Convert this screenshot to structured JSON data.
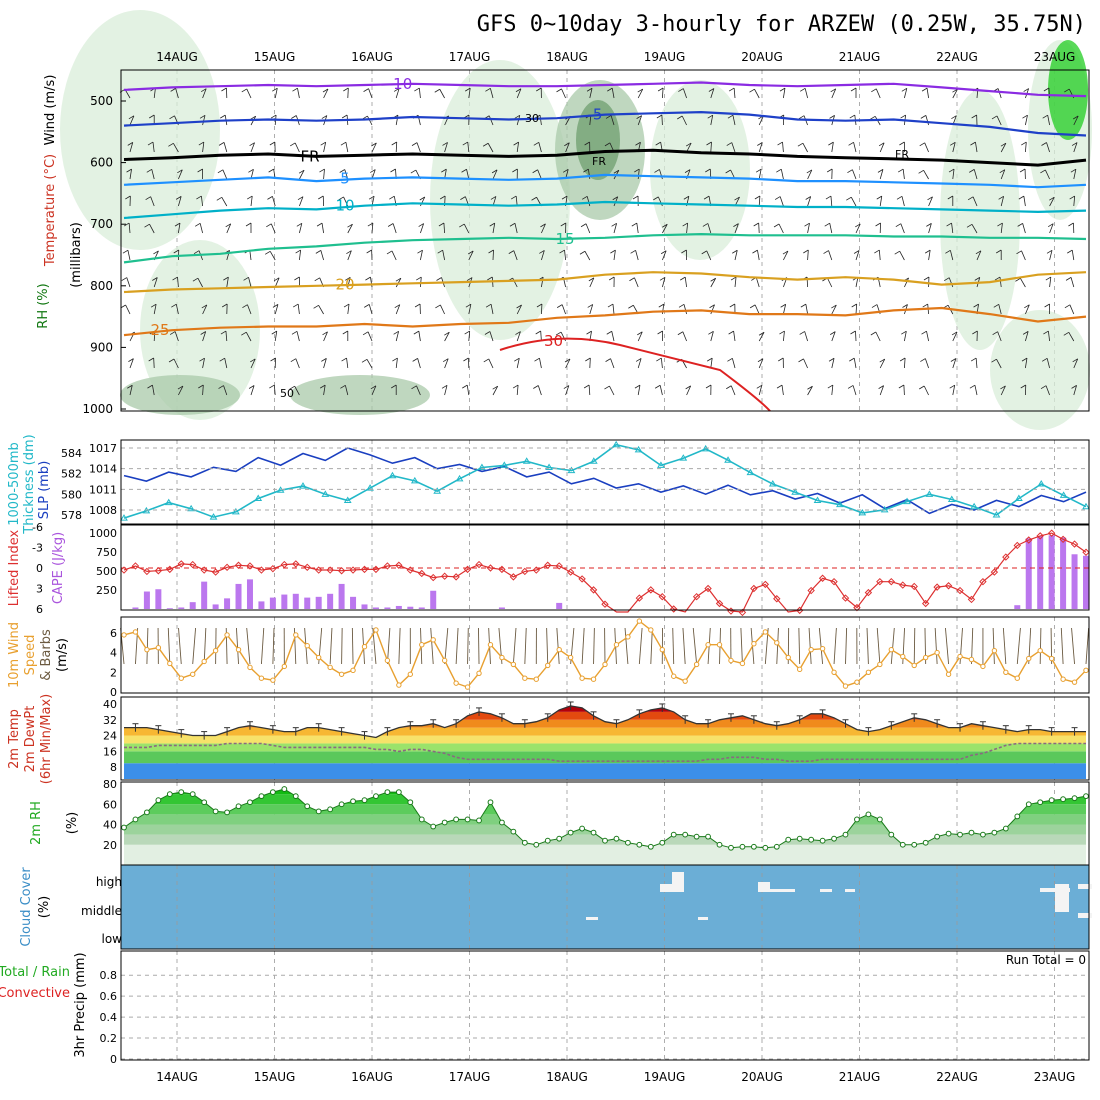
{
  "title": "GFS 0~10day 3-hourly for ARZEW (0.25W, 35.75N)",
  "dates": [
    "14AUG",
    "15AUG",
    "16AUG",
    "17AUG",
    "18AUG",
    "19AUG",
    "20AUG",
    "21AUG",
    "22AUG",
    "23AUG"
  ],
  "colors": {
    "rh_fill_light": "#d9eed9",
    "rh_fill_mid": "#a9c9a9",
    "rh_fill_dark": "#6f9f6f",
    "rh_green": "#22cc22",
    "temp_m10": "#8a2be2",
    "temp_m5": "#1e40c8",
    "temp_fr": "#000000",
    "temp_5": "#1e90ff",
    "temp_10": "#00b0c8",
    "temp_15": "#1fbf8f",
    "temp_20": "#d9a020",
    "temp_25": "#e07818",
    "temp_30": "#dd2222",
    "slp": "#1a3fc0",
    "thick": "#22b8c8",
    "li": "#dd3030",
    "cape": "#bb77ee",
    "wind": "#e8a030",
    "cloud_bg": "#6baed6"
  },
  "chart_data": [
    {
      "type": "line",
      "panel": "upper-air",
      "ylabel_parts": [
        "Wind (m/s)",
        "Temperature (°C)",
        "RH (%)"
      ],
      "yaxis_label": "(millibars)",
      "yticks": [
        500,
        600,
        700,
        800,
        900,
        1000
      ],
      "ylim": [
        450,
        1000
      ],
      "fr_label": "FR",
      "rh_labels": [
        "30",
        "50"
      ],
      "isotherms": [
        {
          "name": "-10",
          "values": [
            482,
            478,
            476,
            474,
            476,
            474,
            472,
            474,
            476,
            476,
            474,
            472,
            470,
            474,
            476,
            474,
            472,
            478,
            484,
            490,
            492
          ]
        },
        {
          "name": "-5",
          "values": [
            540,
            536,
            532,
            530,
            532,
            530,
            526,
            528,
            530,
            528,
            522,
            520,
            518,
            522,
            530,
            532,
            530,
            536,
            542,
            552,
            556
          ]
        },
        {
          "name": "FR",
          "values": [
            595,
            592,
            588,
            586,
            590,
            588,
            586,
            588,
            590,
            588,
            582,
            580,
            584,
            586,
            590,
            592,
            594,
            596,
            600,
            604,
            596
          ]
        },
        {
          "name": "5",
          "values": [
            636,
            632,
            628,
            624,
            630,
            626,
            624,
            626,
            628,
            626,
            620,
            622,
            624,
            626,
            630,
            630,
            632,
            634,
            636,
            640,
            636
          ]
        },
        {
          "name": "10",
          "values": [
            690,
            684,
            678,
            674,
            676,
            670,
            666,
            668,
            670,
            668,
            664,
            666,
            668,
            670,
            672,
            672,
            674,
            676,
            678,
            680,
            678
          ]
        },
        {
          "name": "15",
          "values": [
            762,
            752,
            748,
            740,
            736,
            730,
            726,
            724,
            722,
            724,
            722,
            718,
            716,
            718,
            718,
            718,
            720,
            720,
            722,
            722,
            724
          ]
        },
        {
          "name": "20",
          "values": [
            810,
            806,
            804,
            802,
            800,
            798,
            796,
            794,
            792,
            790,
            782,
            778,
            780,
            786,
            790,
            786,
            790,
            798,
            794,
            782,
            778
          ]
        },
        {
          "name": "25",
          "values": [
            880,
            872,
            868,
            866,
            866,
            862,
            866,
            862,
            860,
            852,
            848,
            842,
            840,
            846,
            846,
            848,
            840,
            836,
            846,
            858,
            850
          ]
        }
      ]
    },
    {
      "type": "line",
      "panel": "slp-thickness",
      "ylabel_left": "Thickness (dm)",
      "ylabel_left2": "1000-500mb",
      "ylabel_right": "SLP (mb)",
      "left_ticks": [
        578,
        580,
        582,
        584
      ],
      "right_ticks": [
        1008,
        1011,
        1014,
        1017
      ],
      "series": [
        {
          "name": "SLP",
          "values": [
            1013.0,
            1012.2,
            1013.5,
            1012.8,
            1014.2,
            1013.6,
            1015.6,
            1014.5,
            1016.2,
            1015.2,
            1017.0,
            1016.0,
            1014.8,
            1015.6,
            1014.0,
            1014.6,
            1013.6,
            1014.3,
            1012.8,
            1013.5,
            1011.8,
            1012.6,
            1011.2,
            1011.8,
            1010.6,
            1011.5,
            1010.3,
            1011.6,
            1010.2,
            1010.8,
            1009.6,
            1010.4,
            1009.0,
            1010.2,
            1008.2,
            1009.5,
            1007.5,
            1008.8,
            1008.0,
            1009.4,
            1008.5,
            1010.1,
            1009.2,
            1010.6
          ]
        },
        {
          "name": "Thickness",
          "values": [
            577.7,
            578.4,
            579.2,
            578.6,
            577.8,
            578.3,
            579.6,
            580.4,
            580.8,
            580.0,
            579.4,
            580.6,
            581.8,
            581.3,
            580.3,
            581.5,
            582.6,
            582.8,
            583.2,
            582.6,
            582.3,
            583.2,
            584.8,
            584.3,
            582.8,
            583.5,
            584.4,
            583.3,
            582.1,
            581.0,
            580.2,
            579.4,
            579.0,
            578.2,
            578.5,
            579.3,
            580.0,
            579.5,
            578.8,
            578.0,
            579.6,
            581.0,
            579.9,
            578.8
          ]
        }
      ]
    },
    {
      "type": "bar",
      "panel": "cape-li",
      "ylabel": "CAPE (J/kg)",
      "ylabel_li": "Lifted Index",
      "li_ticks": [
        -6,
        -3,
        0,
        3,
        6
      ],
      "cape_ticks": [
        250,
        500,
        750,
        1000
      ],
      "cape_values": [
        0,
        20,
        230,
        260,
        10,
        20,
        90,
        360,
        60,
        140,
        330,
        390,
        100,
        150,
        190,
        200,
        150,
        160,
        200,
        330,
        160,
        60,
        20,
        20,
        40,
        30,
        20,
        240,
        0,
        0,
        0,
        0,
        0,
        20,
        0,
        0,
        0,
        0,
        80,
        0,
        0,
        0,
        0,
        0,
        0,
        0,
        0,
        0,
        0,
        0,
        0,
        0,
        0,
        0,
        0,
        0,
        0,
        0,
        0,
        0,
        0,
        0,
        0,
        0,
        0,
        0,
        0,
        0,
        0,
        0,
        0,
        0,
        0,
        0,
        0,
        0,
        0,
        0,
        50,
        930,
        960,
        970,
        940,
        720,
        700
      ],
      "li_values": [
        0.3,
        -0.3,
        0.5,
        0.4,
        0.2,
        -0.6,
        -0.5,
        0.3,
        0.6,
        -0.1,
        -0.4,
        -0.3,
        0.3,
        0.1,
        -0.5,
        -0.6,
        -0.1,
        0.3,
        0.3,
        0.4,
        0.3,
        0.2,
        0.2,
        -0.3,
        -0.4,
        0.3,
        0.8,
        1.4,
        1.2,
        1.3,
        0.2,
        -0.5,
        0.0,
        0.2,
        1.3,
        0.5,
        0.3,
        -0.4,
        -0.3,
        0.6,
        1.6,
        3.2,
        5.3,
        6.8,
        7.2,
        4.4,
        3.2,
        4.2,
        6.0,
        7.1,
        4.2,
        3.0,
        5.2,
        6.3,
        6.5,
        3.0,
        2.4,
        4.5,
        6.8,
        6.2,
        3.3,
        1.5,
        2.0,
        4.4,
        5.8,
        3.6,
        2.0,
        2.0,
        2.5,
        2.7,
        5.2,
        2.8,
        2.6,
        3.3,
        4.6,
        2.0,
        0.6,
        -1.6,
        -3.3,
        -4.1,
        -4.7,
        -5.1,
        -4.2,
        -3.5,
        -2.3
      ]
    },
    {
      "type": "line",
      "panel": "wind",
      "ylabel": "10m Wind Speed & Barbs (m/s)",
      "ylabel_parts": [
        "10m Wind",
        "Speed",
        "& Barbs",
        "(m/s)"
      ],
      "yticks": [
        0,
        2,
        4,
        6
      ],
      "values": [
        5.8,
        6.1,
        4.3,
        4.5,
        2.9,
        1.4,
        1.8,
        3.1,
        4.2,
        5.8,
        4.3,
        2.5,
        1.4,
        1.2,
        2.6,
        5.8,
        4.7,
        3.5,
        2.5,
        1.8,
        2.2,
        4.6,
        6.3,
        3.2,
        0.7,
        1.8,
        4.8,
        5.3,
        3.2,
        0.9,
        0.5,
        1.9,
        4.8,
        3.5,
        2.8,
        1.4,
        1.3,
        2.7,
        4.3,
        3.5,
        1.4,
        1.3,
        2.8,
        4.8,
        5.6,
        7.2,
        6.3,
        4.3,
        1.6,
        1.1,
        2.8,
        4.8,
        4.8,
        3.2,
        2.9,
        4.9,
        6.1,
        5.0,
        3.5,
        2.3,
        4.3,
        4.4,
        2.0,
        0.6,
        1.0,
        2.0,
        2.8,
        4.3,
        3.6,
        2.7,
        3.5,
        4.0,
        1.8,
        3.6,
        3.3,
        2.6,
        4.2,
        2.0,
        1.4,
        3.4,
        4.2,
        3.4,
        1.3,
        1.0,
        2.2
      ]
    },
    {
      "type": "area",
      "panel": "temperature",
      "ylabel_parts": [
        "2m Temp",
        "2m DewPt",
        "(6hr Min/Max)"
      ],
      "yticks": [
        8,
        16,
        24,
        32,
        40
      ],
      "temp": [
        28,
        28,
        28,
        27,
        26,
        25,
        24,
        24,
        24,
        26,
        28,
        29,
        28,
        27,
        26,
        26,
        28,
        28,
        27,
        26,
        25,
        24,
        23,
        26,
        28,
        29,
        29,
        30,
        28,
        30,
        34,
        36,
        35,
        33,
        30,
        30,
        31,
        33,
        37,
        39,
        38,
        34,
        31,
        30,
        32,
        35,
        37,
        38,
        36,
        32,
        30,
        30,
        32,
        33,
        34,
        32,
        30,
        29,
        30,
        32,
        35,
        35,
        33,
        30,
        27,
        26,
        27,
        29,
        31,
        33,
        32,
        30,
        28,
        28,
        30,
        29,
        28,
        27,
        26,
        27,
        27,
        26,
        26,
        26,
        26
      ],
      "dewpt": [
        18,
        18,
        18,
        19,
        19,
        19,
        19,
        19,
        19,
        20,
        20,
        20,
        20,
        19,
        18,
        18,
        18,
        18,
        18,
        18,
        18,
        18,
        17,
        17,
        16,
        17,
        17,
        16,
        15,
        13,
        12,
        12,
        12,
        12,
        12,
        12,
        12,
        12,
        11,
        11,
        11,
        11,
        11,
        11,
        11,
        11,
        11,
        11,
        11,
        11,
        11,
        12,
        12,
        13,
        13,
        13,
        12,
        12,
        11,
        11,
        11,
        12,
        12,
        12,
        12,
        12,
        12,
        12,
        12,
        12,
        12,
        12,
        12,
        12,
        14,
        15,
        17,
        19,
        20,
        20,
        20,
        20,
        20,
        20,
        20
      ]
    },
    {
      "type": "area",
      "panel": "rh",
      "ylabel_parts": [
        "2m RH",
        "(%)"
      ],
      "yticks": [
        20,
        40,
        60,
        80
      ],
      "values": [
        37,
        45,
        52,
        64,
        70,
        72,
        70,
        62,
        53,
        52,
        58,
        62,
        68,
        72,
        75,
        68,
        58,
        53,
        55,
        60,
        63,
        64,
        68,
        72,
        72,
        62,
        45,
        38,
        42,
        45,
        45,
        44,
        62,
        42,
        33,
        22,
        20,
        24,
        26,
        32,
        36,
        32,
        24,
        26,
        22,
        20,
        18,
        22,
        30,
        30,
        28,
        28,
        20,
        17,
        18,
        18,
        17,
        18,
        25,
        26,
        25,
        24,
        26,
        30,
        45,
        50,
        45,
        30,
        20,
        20,
        22,
        28,
        31,
        30,
        32,
        30,
        32,
        36,
        48,
        60,
        62,
        64,
        65,
        66,
        68
      ]
    },
    {
      "type": "bar",
      "panel": "cloud",
      "ylabel_parts": [
        "Cloud Cover",
        "(%)"
      ],
      "levels": [
        "high",
        "middle",
        "low"
      ]
    },
    {
      "type": "bar",
      "panel": "precip",
      "ylabel_parts": [
        "Total / Rain",
        "Convective",
        "3hr Precip (mm)"
      ],
      "yticks": [
        0,
        0.2,
        0.4,
        0.6,
        0.8
      ],
      "run_total": "Run Total = 0",
      "values": []
    }
  ]
}
